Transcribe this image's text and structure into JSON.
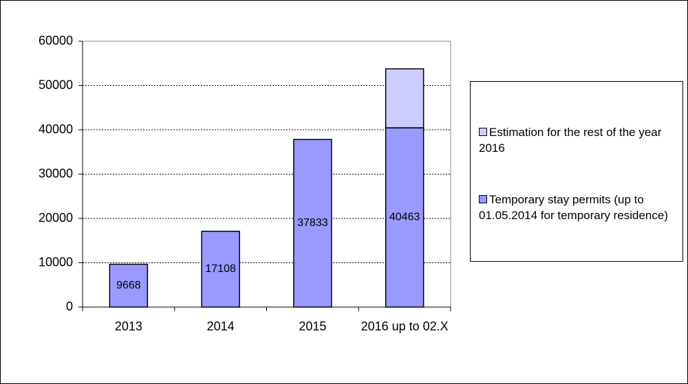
{
  "chart_data": {
    "type": "stacked_bar",
    "categories": [
      "2013",
      "2014",
      "2015",
      "2016 up to 02.X"
    ],
    "series": [
      {
        "name": "Temporary stay permits (up to 01.05.2014 for temporary residence)",
        "color": "#9999ff",
        "values": [
          9668,
          17108,
          37833,
          40463
        ]
      },
      {
        "name": "Estimation for the rest of the year 2016",
        "color": "#ccccff",
        "values": [
          null,
          null,
          null,
          13300
        ]
      }
    ],
    "ylim": [
      0,
      60000
    ],
    "yticks": [
      0,
      10000,
      20000,
      30000,
      40000,
      50000,
      60000
    ],
    "grid": true
  }
}
